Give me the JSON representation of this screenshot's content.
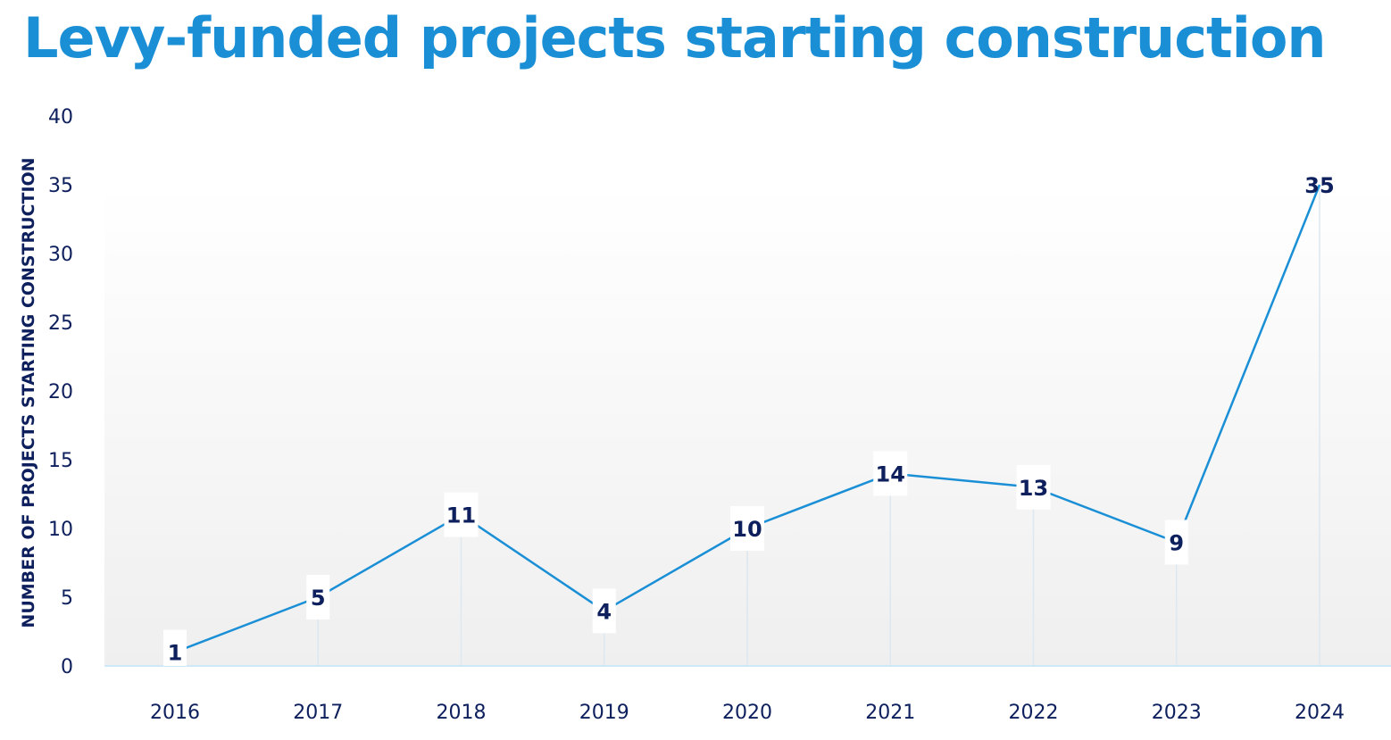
{
  "chart_data": {
    "type": "line",
    "title": "Levy-funded projects starting construction",
    "xlabel": "",
    "ylabel": "NUMBER OF PROJECTS STARTING CONSTRUCTION",
    "categories": [
      "2016",
      "2017",
      "2018",
      "2019",
      "2020",
      "2021",
      "2022",
      "2023",
      "2024"
    ],
    "values": [
      1,
      5,
      11,
      4,
      10,
      14,
      13,
      9,
      35
    ],
    "ylim": [
      0,
      40
    ],
    "yticks": [
      0,
      5,
      10,
      15,
      20,
      25,
      30,
      35,
      40
    ],
    "grid": false,
    "data_labels": true,
    "colors": {
      "line": "#1a8fd6",
      "text": "#0d1f5c",
      "title": "#1a8fd6"
    }
  }
}
